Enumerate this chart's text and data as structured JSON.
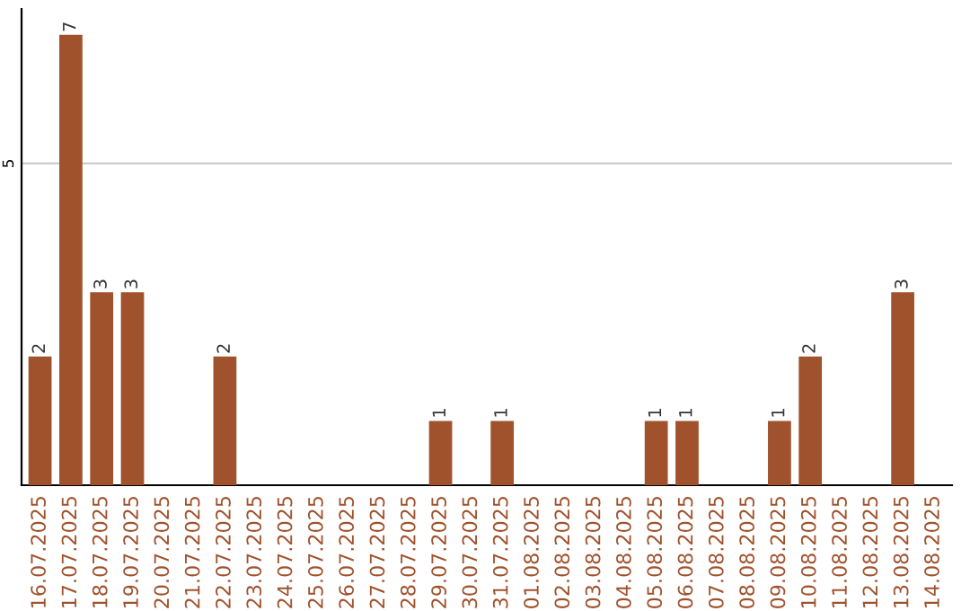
{
  "chart_data": {
    "type": "bar",
    "categories": [
      "16.07.2025",
      "17.07.2025",
      "18.07.2025",
      "19.07.2025",
      "20.07.2025",
      "21.07.2025",
      "22.07.2025",
      "23.07.2025",
      "24.07.2025",
      "25.07.2025",
      "26.07.2025",
      "27.07.2025",
      "28.07.2025",
      "29.07.2025",
      "30.07.2025",
      "31.07.2025",
      "01.08.2025",
      "02.08.2025",
      "03.08.2025",
      "04.08.2025",
      "05.08.2025",
      "06.08.2025",
      "07.08.2025",
      "08.08.2025",
      "09.08.2025",
      "10.08.2025",
      "11.08.2025",
      "12.08.2025",
      "13.08.2025",
      "14.08.2025"
    ],
    "values": [
      2,
      7,
      3,
      3,
      0,
      0,
      2,
      0,
      0,
      0,
      0,
      0,
      0,
      1,
      0,
      1,
      0,
      0,
      0,
      0,
      1,
      1,
      0,
      0,
      1,
      2,
      0,
      0,
      3,
      0
    ],
    "value_labels": [
      "2",
      "7",
      "3",
      "3",
      null,
      null,
      "2",
      null,
      null,
      null,
      null,
      null,
      null,
      "1",
      null,
      "1",
      null,
      null,
      null,
      null,
      "1",
      "1",
      null,
      null,
      "1",
      "2",
      null,
      null,
      "3",
      null
    ],
    "color": "#a0522d",
    "ylim": [
      0,
      7.4
    ],
    "yticks": [
      5
    ],
    "grid": "y"
  }
}
